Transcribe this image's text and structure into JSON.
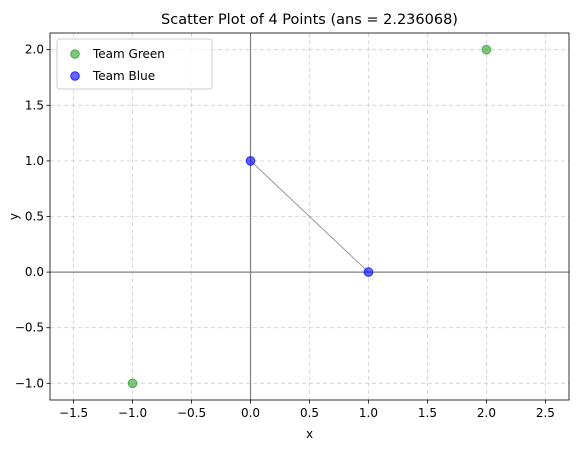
{
  "chart_data": {
    "type": "scatter",
    "title": "Scatter Plot of 4 Points (ans = 2.236068)",
    "xlabel": "x",
    "ylabel": "y",
    "xlim": [
      -1.7,
      2.7
    ],
    "ylim": [
      -1.15,
      2.15
    ],
    "xticks": [
      -1.5,
      -1.0,
      -0.5,
      0.0,
      0.5,
      1.0,
      1.5,
      2.0,
      2.5
    ],
    "xtick_labels": [
      "−1.5",
      "−1.0",
      "−0.5",
      "0.0",
      "0.5",
      "1.0",
      "1.5",
      "2.0",
      "2.5"
    ],
    "yticks": [
      -1.0,
      -0.5,
      0.0,
      0.5,
      1.0,
      1.5,
      2.0
    ],
    "ytick_labels": [
      "−1.0",
      "−0.5",
      "0.0",
      "0.5",
      "1.0",
      "1.5",
      "2.0"
    ],
    "grid": true,
    "legend_position": "upper-left",
    "series": [
      {
        "name": "Team Green",
        "color": "#2ca02c",
        "points": [
          {
            "x": -1,
            "y": -1
          },
          {
            "x": 2,
            "y": 2
          }
        ]
      },
      {
        "name": "Team Blue",
        "color": "#0000ff",
        "points": [
          {
            "x": 0,
            "y": 1
          },
          {
            "x": 1,
            "y": 0
          }
        ]
      }
    ],
    "connecting_segment": {
      "from": {
        "x": 0,
        "y": 1
      },
      "to": {
        "x": 1,
        "y": 0
      },
      "color": "#808080"
    },
    "reference_lines": {
      "x0": true,
      "y0": true,
      "color": "#808080"
    }
  }
}
